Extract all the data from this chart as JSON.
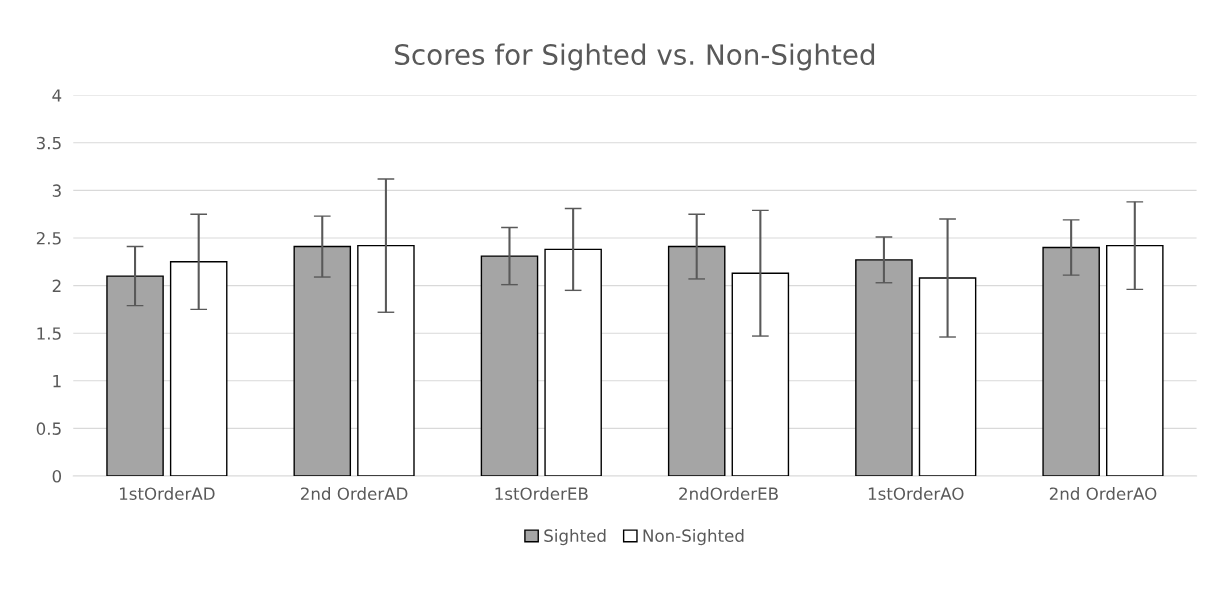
{
  "chart_data": {
    "type": "bar",
    "title": "Scores for Sighted vs. Non-Sighted",
    "categories": [
      "1stOrderAD",
      "2nd OrderAD",
      "1stOrderEB",
      "2ndOrderEB",
      "1stOrderAO",
      "2nd OrderAO"
    ],
    "series": [
      {
        "name": "Sighted",
        "color": "#a5a5a5",
        "values": [
          2.1,
          2.41,
          2.31,
          2.41,
          2.27,
          2.4
        ],
        "errors": [
          0.31,
          0.32,
          0.3,
          0.34,
          0.24,
          0.29
        ]
      },
      {
        "name": "Non-Sighted",
        "color": "#ffffff",
        "values": [
          2.25,
          2.42,
          2.38,
          2.13,
          2.08,
          2.42
        ],
        "errors": [
          0.5,
          0.7,
          0.43,
          0.66,
          0.62,
          0.46
        ]
      }
    ],
    "ylim": [
      0,
      4
    ],
    "yticks": [
      0,
      0.5,
      1,
      1.5,
      2,
      2.5,
      3,
      3.5,
      4
    ],
    "grid": "y",
    "legend": "bottom"
  }
}
